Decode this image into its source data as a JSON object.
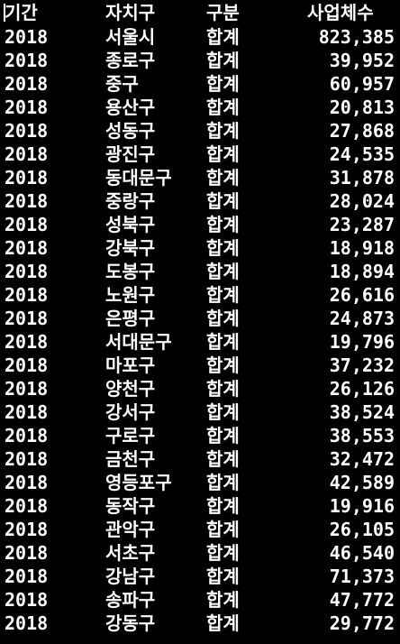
{
  "header": {
    "col_period": "기간",
    "col_district": "자치구",
    "col_category": "구분",
    "col_count": "사업체수"
  },
  "rows": [
    {
      "period": "2018",
      "district": "서울시",
      "category": "합계",
      "count": "823,385"
    },
    {
      "period": "2018",
      "district": "종로구",
      "category": "합계",
      "count": "39,952"
    },
    {
      "period": "2018",
      "district": "중구",
      "category": "합계",
      "count": "60,957"
    },
    {
      "period": "2018",
      "district": "용산구",
      "category": "합계",
      "count": "20,813"
    },
    {
      "period": "2018",
      "district": "성동구",
      "category": "합계",
      "count": "27,868"
    },
    {
      "period": "2018",
      "district": "광진구",
      "category": "합계",
      "count": "24,535"
    },
    {
      "period": "2018",
      "district": "동대문구",
      "category": "합계",
      "count": "31,878"
    },
    {
      "period": "2018",
      "district": "중랑구",
      "category": "합계",
      "count": "28,024"
    },
    {
      "period": "2018",
      "district": "성북구",
      "category": "합계",
      "count": "23,287"
    },
    {
      "period": "2018",
      "district": "강북구",
      "category": "합계",
      "count": "18,918"
    },
    {
      "period": "2018",
      "district": "도봉구",
      "category": "합계",
      "count": "18,894"
    },
    {
      "period": "2018",
      "district": "노원구",
      "category": "합계",
      "count": "26,616"
    },
    {
      "period": "2018",
      "district": "은평구",
      "category": "합계",
      "count": "24,873"
    },
    {
      "period": "2018",
      "district": "서대문구",
      "category": "합계",
      "count": "19,796"
    },
    {
      "period": "2018",
      "district": "마포구",
      "category": "합계",
      "count": "37,232"
    },
    {
      "period": "2018",
      "district": "양천구",
      "category": "합계",
      "count": "26,126"
    },
    {
      "period": "2018",
      "district": "강서구",
      "category": "합계",
      "count": "38,524"
    },
    {
      "period": "2018",
      "district": "구로구",
      "category": "합계",
      "count": "38,553"
    },
    {
      "period": "2018",
      "district": "금천구",
      "category": "합계",
      "count": "32,472"
    },
    {
      "period": "2018",
      "district": "영등포구",
      "category": "합계",
      "count": "42,589"
    },
    {
      "period": "2018",
      "district": "동작구",
      "category": "합계",
      "count": "19,916"
    },
    {
      "period": "2018",
      "district": "관악구",
      "category": "합계",
      "count": "26,105"
    },
    {
      "period": "2018",
      "district": "서초구",
      "category": "합계",
      "count": "46,540"
    },
    {
      "period": "2018",
      "district": "강남구",
      "category": "합계",
      "count": "71,373"
    },
    {
      "period": "2018",
      "district": "송파구",
      "category": "합계",
      "count": "47,772"
    },
    {
      "period": "2018",
      "district": "강동구",
      "category": "합계",
      "count": "29,772"
    }
  ],
  "colors": {
    "background": "#000000",
    "text": "#ffffff"
  }
}
